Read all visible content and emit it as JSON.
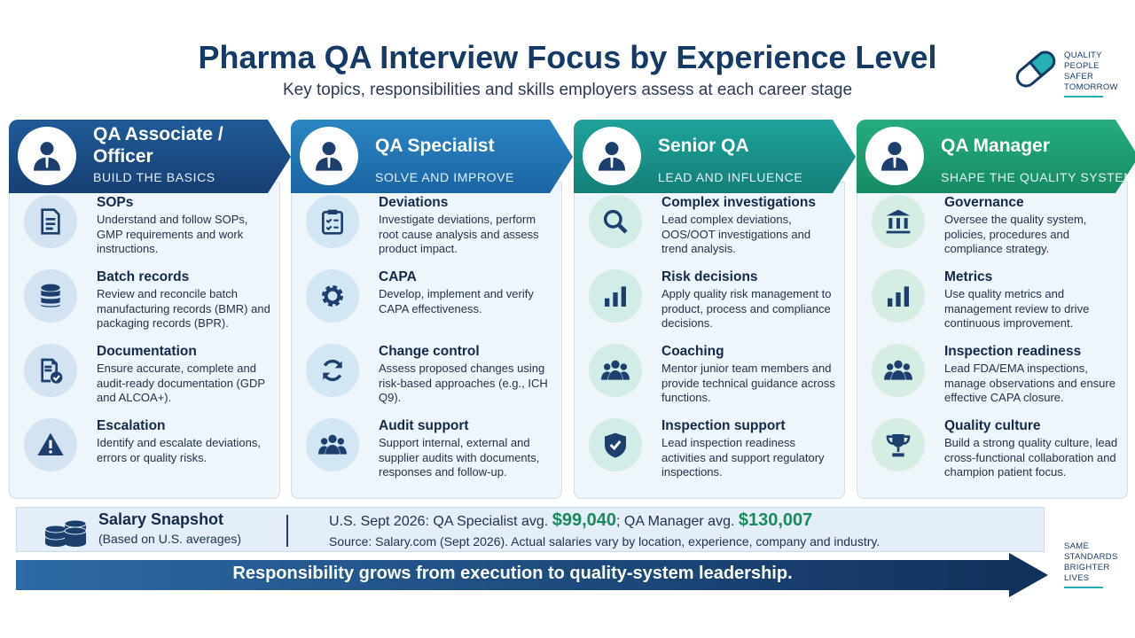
{
  "header": {
    "title": "Pharma QA Interview Focus by Experience Level",
    "subtitle": "Key topics, responsibilities and skills employers assess at each career stage"
  },
  "logo": {
    "lines": [
      "QUALITY",
      "PEOPLE",
      "SAFER",
      "TOMORROW"
    ]
  },
  "columns": [
    {
      "title": "QA Associate / Officer",
      "tagline": "BUILD THE BASICS",
      "items": [
        {
          "title": "SOPs",
          "text": "Understand and follow SOPs, GMP requirements and work instructions."
        },
        {
          "title": "Batch records",
          "text": "Review and reconcile batch manufacturing records (BMR) and packaging records (BPR)."
        },
        {
          "title": "Documentation",
          "text": "Ensure accurate, complete and audit-ready documentation (GDP and ALCOA+)."
        },
        {
          "title": "Escalation",
          "text": "Identify and escalate deviations, errors or quality risks."
        }
      ]
    },
    {
      "title": "QA Specialist",
      "tagline": "SOLVE AND IMPROVE",
      "items": [
        {
          "title": "Deviations",
          "text": "Investigate deviations, perform root cause analysis and assess product impact."
        },
        {
          "title": "CAPA",
          "text": "Develop, implement and verify CAPA effectiveness."
        },
        {
          "title": "Change control",
          "text": "Assess proposed changes using risk-based approaches (e.g., ICH Q9)."
        },
        {
          "title": "Audit support",
          "text": "Support internal, external and supplier audits with documents, responses and follow-up."
        }
      ]
    },
    {
      "title": "Senior QA",
      "tagline": "LEAD AND INFLUENCE",
      "items": [
        {
          "title": "Complex investigations",
          "text": "Lead complex deviations, OOS/OOT investigations and trend analysis."
        },
        {
          "title": "Risk decisions",
          "text": "Apply quality risk management to product, process and compliance decisions."
        },
        {
          "title": "Coaching",
          "text": "Mentor junior team members and provide technical guidance across functions."
        },
        {
          "title": "Inspection support",
          "text": "Lead inspection readiness activities and support regulatory inspections."
        }
      ]
    },
    {
      "title": "QA Manager",
      "tagline": "SHAPE THE QUALITY SYSTEM",
      "items": [
        {
          "title": "Governance",
          "text": "Oversee the quality system, policies, procedures and compliance strategy."
        },
        {
          "title": "Metrics",
          "text": "Use quality metrics and management review to drive continuous improvement."
        },
        {
          "title": "Inspection readiness",
          "text": "Lead FDA/EMA inspections, manage observations and ensure effective CAPA closure."
        },
        {
          "title": "Quality culture",
          "text": "Build a strong quality culture, lead cross-functional collaboration and champion patient focus."
        }
      ]
    }
  ],
  "salary": {
    "title": "Salary Snapshot",
    "note": "(Based on U.S. averages)",
    "line_start": "U.S. Sept 2026: QA Specialist avg.",
    "specialist": "$99,040",
    "line_middle": "; QA Manager avg.",
    "manager": "$130,007",
    "source": "Source: Salary.com (Sept 2026). Actual salaries vary by location, experience, company and industry."
  },
  "banner": "Responsibility grows from execution to quality-system leadership.",
  "motto": {
    "lines": [
      "SAME",
      "STANDARDS",
      "BRIGHTER",
      "LIVES"
    ]
  }
}
